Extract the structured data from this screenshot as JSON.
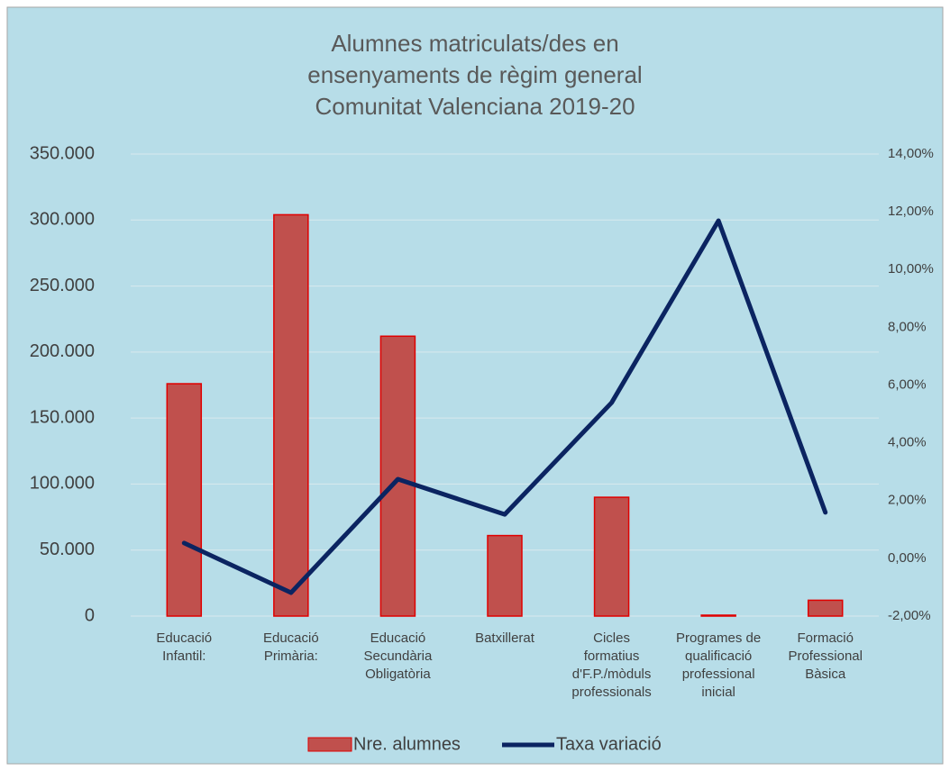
{
  "chart_data": {
    "type": "bar_line",
    "title": [
      "Alumnes matriculats/des en",
      "ensenyaments de règim general",
      "Comunitat Valenciana 2019-20"
    ],
    "categories": [
      "Educació\nInfantil:",
      "Educació\nPrimària:",
      "Educació\nSecundària\nObligatòria",
      "Batxillerat",
      "Cicles\nformatius\nd'F.P./mòduls\nprofessionals",
      "Programes de\nqualificació\nprofessional\ninicial",
      "Formació\nProfessional\nBàsica"
    ],
    "series": [
      {
        "name": "Nre. alumnes",
        "color": "#c0504d",
        "values": [
          176000,
          304000,
          212000,
          61000,
          90000,
          700,
          12000
        ]
      },
      {
        "name": "Taxa variació",
        "color": "#0b2461",
        "axis": "y2",
        "values": [
          0.53,
          -1.19,
          2.74,
          1.52,
          5.39,
          11.69,
          1.59
        ]
      }
    ],
    "ylim": [
      0,
      350000
    ],
    "yticks": [
      0,
      {
        "value": 50000,
        "label": "50.000"
      },
      {
        "value": 100000,
        "label": "100.000"
      },
      {
        "value": 150000,
        "label": "150.000"
      },
      {
        "value": 200000,
        "label": "200.000"
      },
      {
        "value": 250000,
        "label": "250.000"
      },
      {
        "value": 300000,
        "label": "300.000"
      },
      {
        "value": 350000,
        "label": "350.000"
      }
    ],
    "y2lim": [
      -2,
      14
    ],
    "y2ticks": [
      {
        "value": -2,
        "label": "-2,00%"
      },
      {
        "value": 0,
        "label": "0,00%"
      },
      {
        "value": 2,
        "label": "2,00%"
      },
      {
        "value": 4,
        "label": "4,00%"
      },
      {
        "value": 6,
        "label": "6,00%"
      },
      {
        "value": 8,
        "label": "8,00%"
      },
      {
        "value": 10,
        "label": "10,00%"
      },
      {
        "value": 12,
        "label": "12,00%"
      },
      {
        "value": 14,
        "label": "14,00%"
      }
    ],
    "grid": true,
    "legend": "bottom"
  }
}
